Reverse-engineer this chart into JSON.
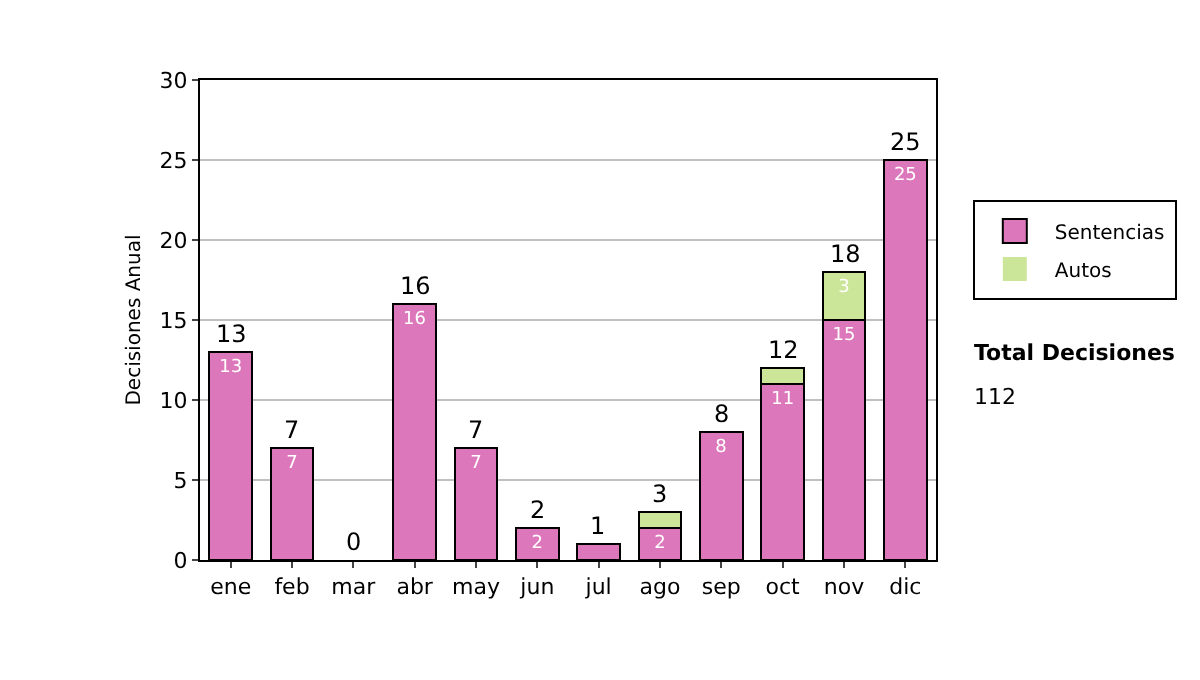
{
  "chart_data": {
    "type": "bar",
    "stacked": true,
    "ylabel": "Decisiones Anual",
    "categories": [
      "ene",
      "feb",
      "mar",
      "abr",
      "may",
      "jun",
      "jul",
      "ago",
      "sep",
      "oct",
      "nov",
      "dic"
    ],
    "series": [
      {
        "name": "Sentencias",
        "color": "#dd77bb",
        "values": [
          13,
          7,
          0,
          16,
          7,
          2,
          1,
          2,
          8,
          11,
          15,
          25
        ],
        "value_labels": [
          "13",
          "7",
          null,
          "16",
          "7",
          "2",
          null,
          "2",
          "8",
          "11",
          "15",
          "25"
        ]
      },
      {
        "name": "Autos",
        "color": "#cce699",
        "values": [
          0,
          0,
          0,
          0,
          0,
          0,
          0,
          1,
          0,
          1,
          3,
          0
        ],
        "value_labels": [
          null,
          null,
          null,
          null,
          null,
          null,
          null,
          null,
          null,
          null,
          "3",
          null
        ]
      }
    ],
    "totals": [
      "13",
      "7",
      "0",
      "16",
      "7",
      "2",
      "1",
      "3",
      "8",
      "12",
      "18",
      "25"
    ],
    "ylim": [
      0,
      30
    ],
    "yticks": [
      0,
      5,
      10,
      15,
      20,
      25,
      30
    ],
    "grid": "y",
    "legend": "right",
    "annotations": [
      "Total Decisiones",
      "112"
    ]
  }
}
